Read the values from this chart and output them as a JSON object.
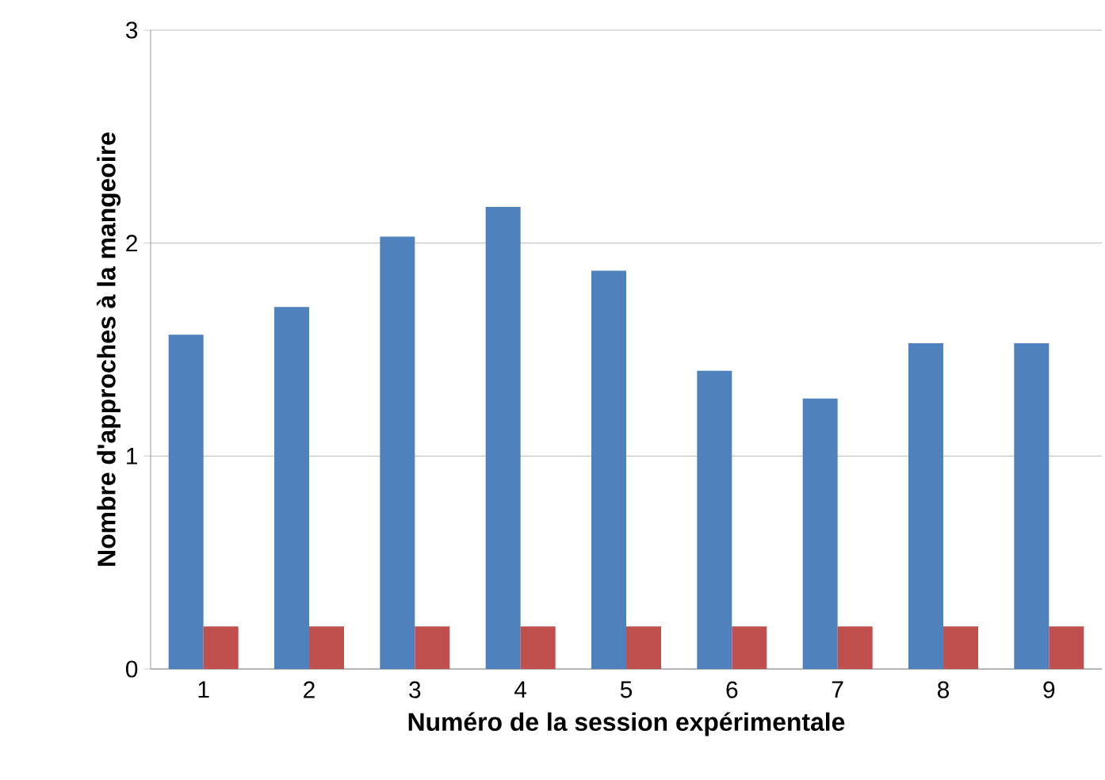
{
  "chart_data": {
    "type": "bar",
    "xlabel": "Numéro de la session expérimentale",
    "ylabel": "Nombre d'approches à la mangeoire",
    "categories": [
      "1",
      "2",
      "3",
      "4",
      "5",
      "6",
      "7",
      "8",
      "9"
    ],
    "series": [
      {
        "color": "#4f81bd",
        "values": [
          1.57,
          1.7,
          2.03,
          2.17,
          1.87,
          1.4,
          1.27,
          1.53,
          1.53
        ]
      },
      {
        "color": "#c0504d",
        "values": [
          0.2,
          0.2,
          0.2,
          0.2,
          0.2,
          0.2,
          0.2,
          0.2,
          0.2
        ]
      }
    ],
    "ylim": [
      0,
      3
    ],
    "yticks": [
      0,
      1,
      2,
      3
    ],
    "grid": "y"
  }
}
